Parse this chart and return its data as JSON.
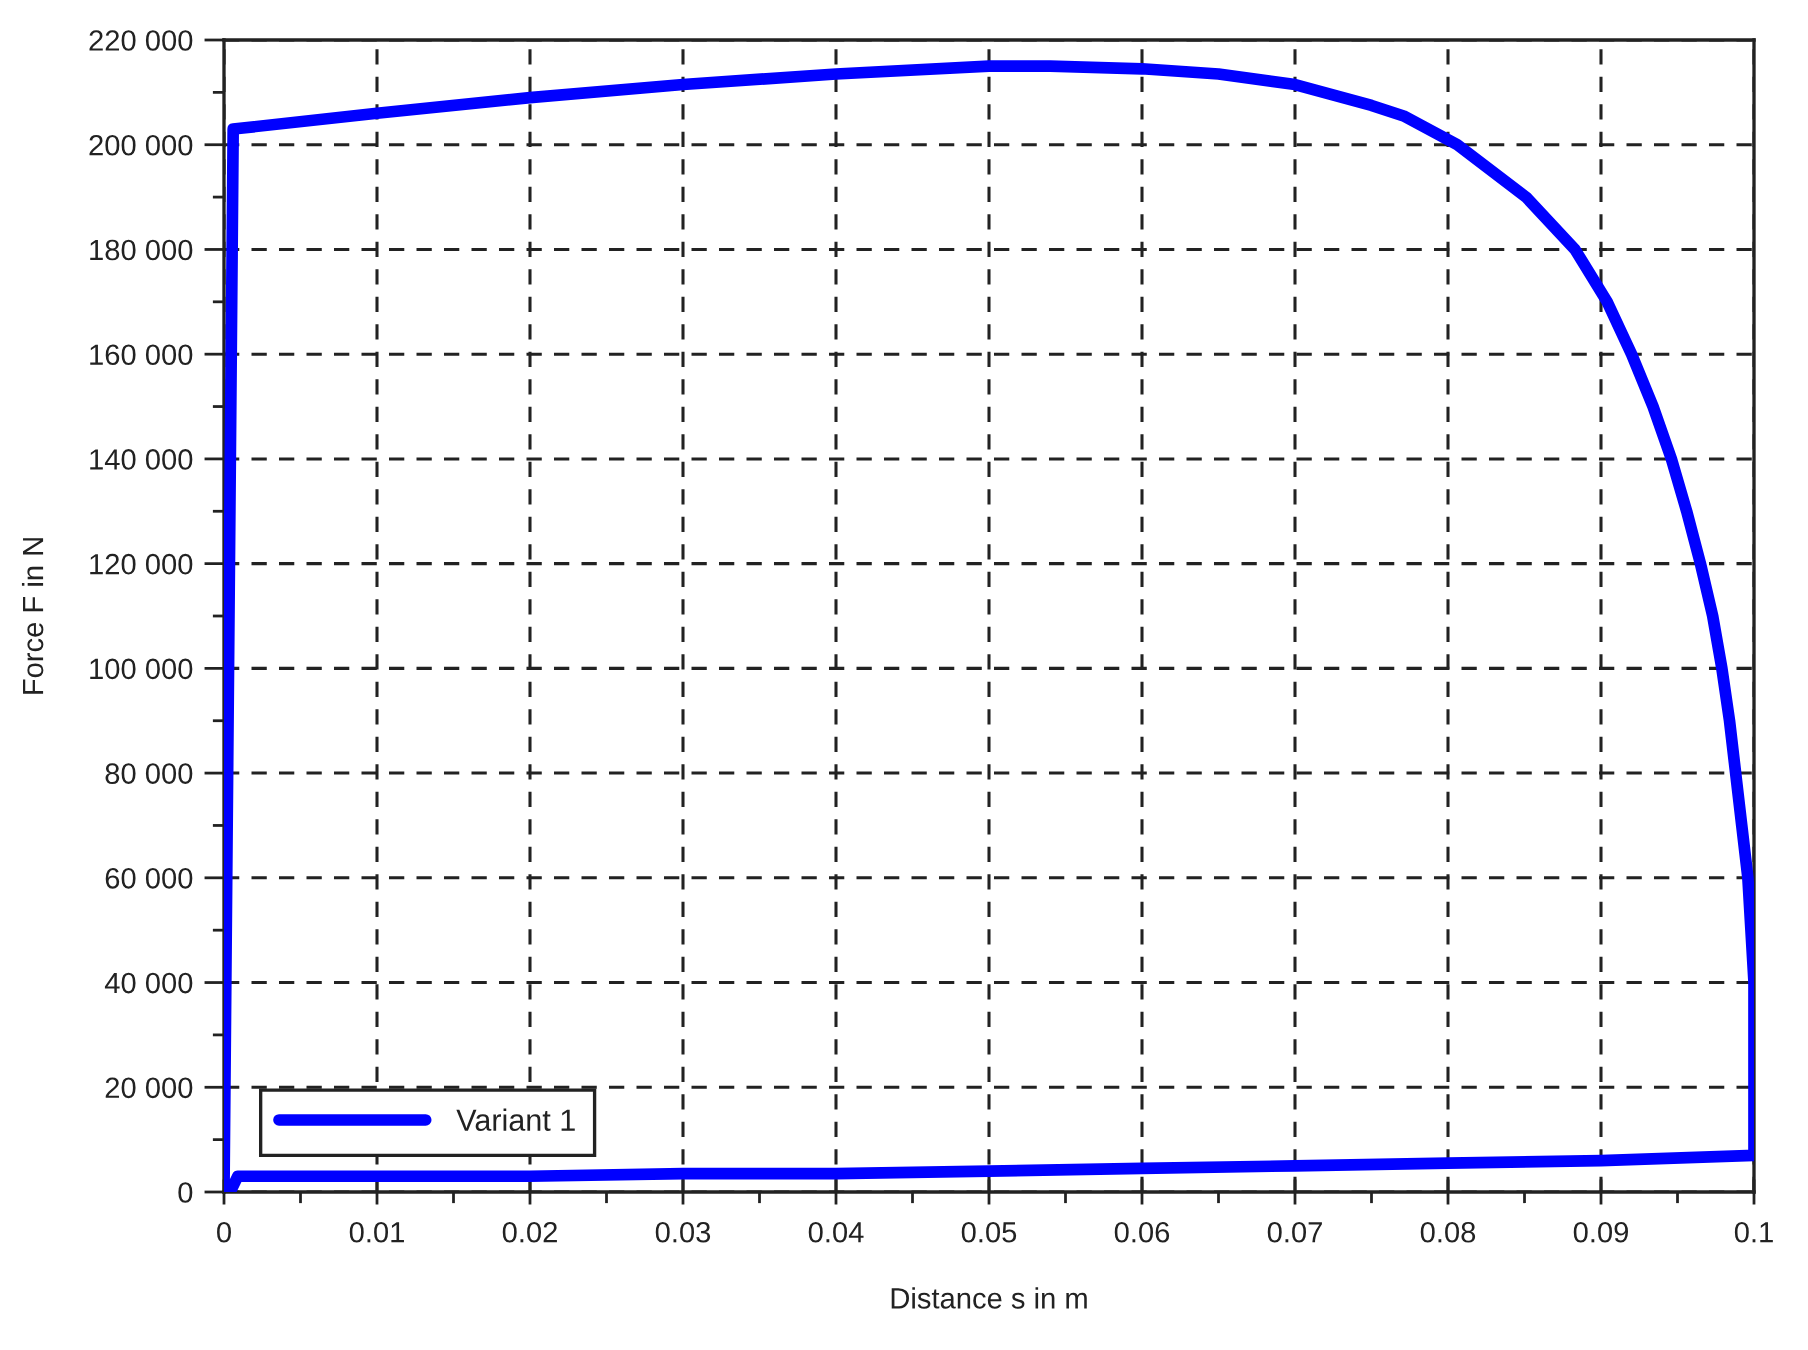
{
  "chart_data": {
    "type": "line",
    "xlabel": "Distance s in m",
    "ylabel": "Force F in N",
    "xlim": [
      0,
      0.1
    ],
    "ylim": [
      0,
      220000
    ],
    "xticks": [
      0,
      {
        "value": 0.005,
        "label": null
      },
      0.01,
      {
        "value": 0.015,
        "label": null
      },
      0.02,
      {
        "value": 0.025,
        "label": null
      },
      0.03,
      {
        "value": 0.035,
        "label": null
      },
      0.04,
      {
        "value": 0.045,
        "label": null
      },
      0.05,
      {
        "value": 0.055,
        "label": null
      },
      0.06,
      {
        "value": 0.065,
        "label": null
      },
      0.07,
      {
        "value": 0.075,
        "label": null
      },
      0.08,
      {
        "value": 0.085,
        "label": null
      },
      0.09,
      {
        "value": 0.095,
        "label": null
      },
      0.1
    ],
    "yticks": [
      0,
      {
        "value": 10000,
        "label": null
      },
      {
        "value": 20000,
        "label": "20 000"
      },
      {
        "value": 30000,
        "label": null
      },
      {
        "value": 40000,
        "label": "40 000"
      },
      {
        "value": 50000,
        "label": null
      },
      {
        "value": 60000,
        "label": "60 000"
      },
      {
        "value": 70000,
        "label": null
      },
      {
        "value": 80000,
        "label": "80 000"
      },
      {
        "value": 90000,
        "label": null
      },
      {
        "value": 100000,
        "label": "100 000"
      },
      {
        "value": 110000,
        "label": null
      },
      {
        "value": 120000,
        "label": "120 000"
      },
      {
        "value": 130000,
        "label": null
      },
      {
        "value": 140000,
        "label": "140 000"
      },
      {
        "value": 150000,
        "label": null
      },
      {
        "value": 160000,
        "label": "160 000"
      },
      {
        "value": 170000,
        "label": null
      },
      {
        "value": 180000,
        "label": "180 000"
      },
      {
        "value": 190000,
        "label": null
      },
      {
        "value": 200000,
        "label": "200 000"
      },
      {
        "value": 210000,
        "label": null
      },
      {
        "value": 220000,
        "label": "220 000"
      }
    ],
    "grid": true,
    "legend": "bottom left",
    "line_style": "solid",
    "series": [
      {
        "name": "Variant 1",
        "color": "#0000ff",
        "x": [
          0,
          0.0006,
          0.01,
          0.02,
          0.03,
          0.04,
          0.05,
          0.054,
          0.06,
          0.065,
          0.07,
          0.075,
          0.0771,
          0.0806,
          0.0851,
          0.0883,
          0.0904,
          0.092,
          0.0934,
          0.0946,
          0.0956,
          0.0965,
          0.0973,
          0.0979,
          0.0984,
          0.0988,
          0.0992,
          0.0996,
          0.0998,
          0.1,
          0.1,
          0.09,
          0.08,
          0.07,
          0.06,
          0.05,
          0.04,
          0.03,
          0.02,
          0.01,
          0.0009,
          0.0004
        ],
        "values": [
          0,
          203000,
          206000,
          209000,
          211500,
          213500,
          215000,
          215000,
          214500,
          213500,
          211500,
          207500,
          205500,
          200000,
          190000,
          180000,
          170000,
          160000,
          150000,
          140000,
          130000,
          120000,
          110000,
          100000,
          90000,
          80000,
          70000,
          60000,
          50000,
          40000,
          7000,
          6000,
          5500,
          5000,
          4500,
          4000,
          3500,
          3500,
          3000,
          3000,
          3000,
          0
        ]
      }
    ]
  }
}
